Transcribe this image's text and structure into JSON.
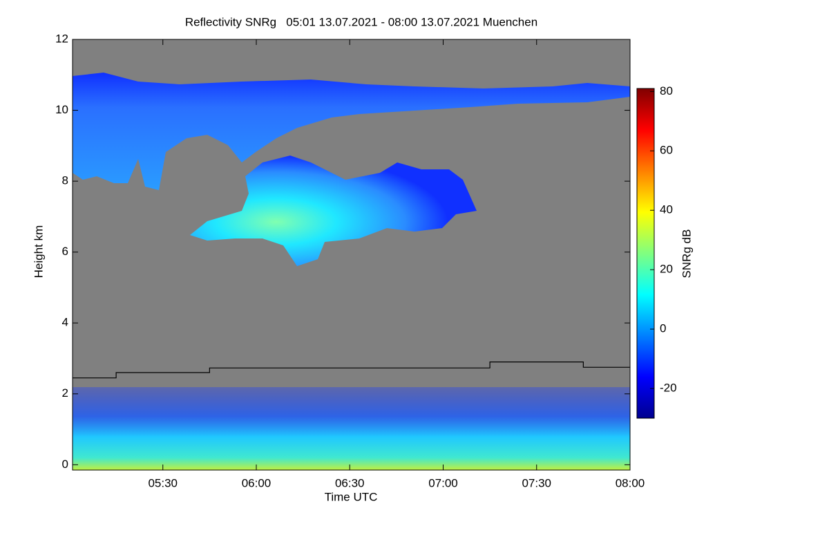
{
  "chart_data": {
    "type": "line",
    "title": "Reflectivity SNRg   05:01 13.07.2021 - 08:00 13.07.2021 Muenchen",
    "xlabel": "Time UTC",
    "ylabel": "Height km",
    "xlim": [
      5.0167,
      8.0
    ],
    "xticks": [
      {
        "value": 5.5,
        "label": "05:30"
      },
      {
        "value": 6.0,
        "label": "06:00"
      },
      {
        "value": 6.5,
        "label": "06:30"
      },
      {
        "value": 7.0,
        "label": "07:00"
      },
      {
        "value": 7.5,
        "label": "07:30"
      },
      {
        "value": 8.0,
        "label": "08:00"
      }
    ],
    "ylim": [
      -0.15,
      12
    ],
    "yticks": [
      0,
      2,
      4,
      6,
      8,
      10,
      12
    ],
    "series": [
      {
        "color": "#000000",
        "x": [
          5.0167,
          5.25,
          5.25,
          5.75,
          5.75,
          7.25,
          7.25,
          7.75,
          7.75,
          8.0
        ],
        "values": [
          2.45,
          2.45,
          2.6,
          2.6,
          2.73,
          2.73,
          2.9,
          2.9,
          2.75,
          2.75
        ]
      }
    ],
    "colorbar": {
      "label": "SNRg dB",
      "lim": [
        -30,
        81
      ],
      "ticks": [
        -20,
        0,
        20,
        40,
        60,
        80
      ],
      "colors": [
        "#00008f",
        "#0000ff",
        "#0080ff",
        "#00ffff",
        "#80ff80",
        "#ffff00",
        "#ff8000",
        "#ff0000",
        "#800000"
      ]
    }
  }
}
